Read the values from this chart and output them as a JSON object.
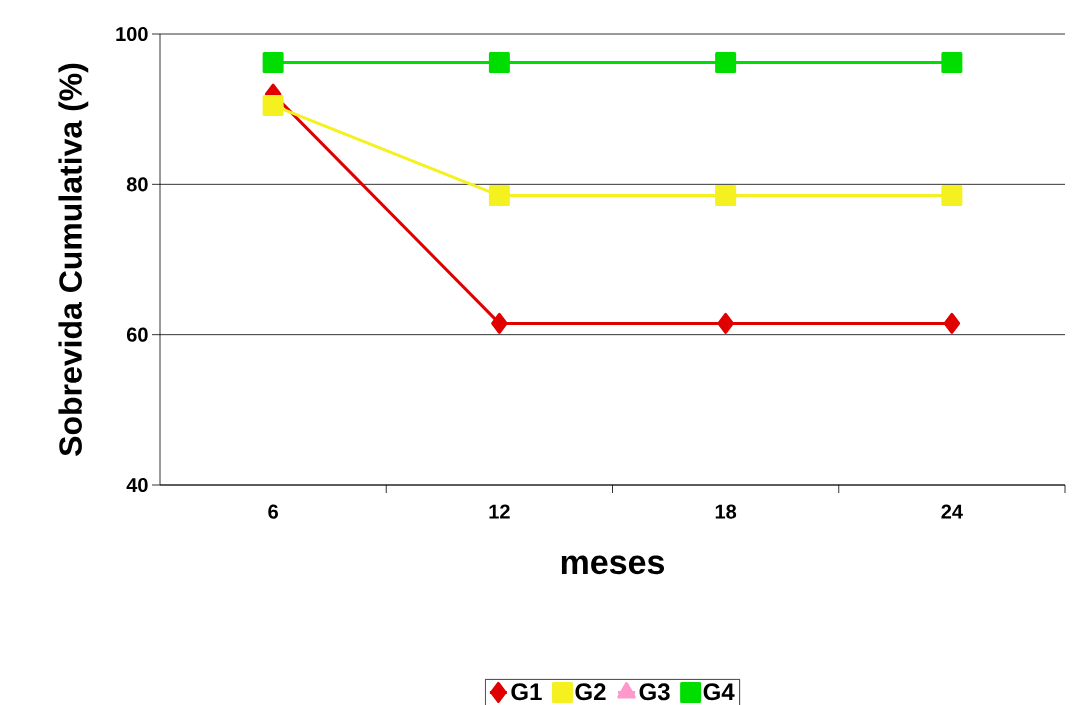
{
  "chart_data": {
    "type": "line",
    "xlabel": "meses",
    "ylabel": "Sobrevida Cumulativa (%)",
    "categories": [
      "6",
      "12",
      "18",
      "24"
    ],
    "series": [
      {
        "name": "G1",
        "color": "#e00000",
        "marker": "diamond",
        "values": [
          92,
          61.5,
          61.5,
          61.5
        ]
      },
      {
        "name": "G2",
        "color": "#f5f020",
        "marker": "square",
        "values": [
          90.5,
          78.5,
          78.5,
          78.5
        ]
      },
      {
        "name": "G3",
        "color": "#ff99cc",
        "marker": "triangle",
        "values": [
          null,
          null,
          null,
          null
        ]
      },
      {
        "name": "G4",
        "color": "#00dd00",
        "marker": "square",
        "values": [
          96.2,
          96.2,
          96.2,
          96.2
        ]
      }
    ],
    "ylim": [
      40,
      100
    ],
    "yticks": [
      40,
      60,
      80,
      100
    ],
    "grid": "y",
    "legend": "bottom",
    "line_style": "solid"
  }
}
